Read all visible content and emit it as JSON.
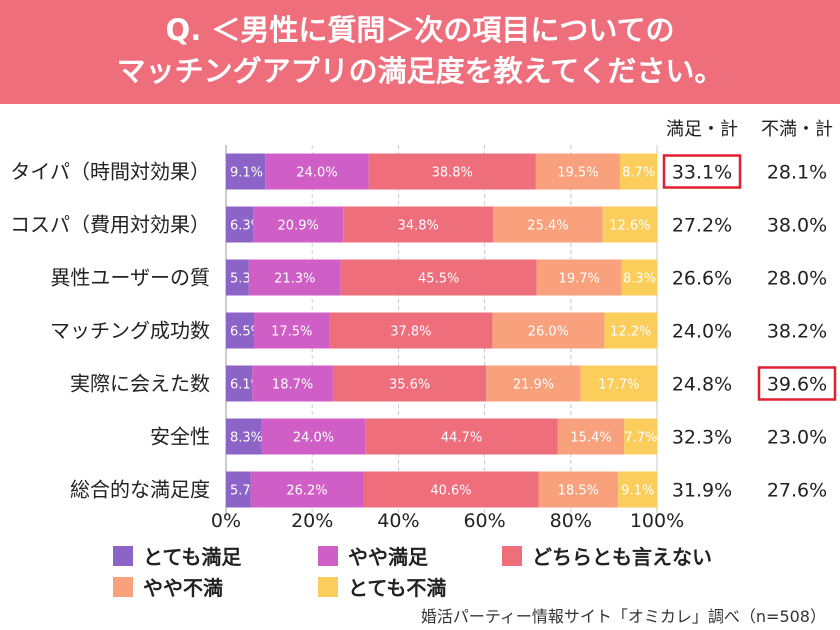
{
  "header": {
    "line1": "Q. ＜男性に質問＞次の項目についての",
    "line2": "マッチングアプリの満足度を教えてください。"
  },
  "chart_data": {
    "type": "bar",
    "orientation": "horizontal-stacked-100",
    "categories": [
      "タイパ（時間対効果）",
      "コスパ（費用対効果）",
      "異性ユーザーの質",
      "マッチング成功数",
      "実際に会えた数",
      "安全性",
      "総合的な満足度"
    ],
    "series": [
      {
        "name": "とても満足",
        "color": "#8c63c6",
        "values": [
          9.1,
          6.3,
          5.3,
          6.5,
          6.1,
          8.3,
          5.7
        ]
      },
      {
        "name": "やや満足",
        "color": "#cf5fc6",
        "values": [
          24.0,
          20.9,
          21.3,
          17.5,
          18.7,
          24.0,
          26.2
        ]
      },
      {
        "name": "どちらとも言えない",
        "color": "#ee6e7c",
        "values": [
          38.8,
          34.8,
          45.5,
          37.8,
          35.6,
          44.7,
          40.6
        ]
      },
      {
        "name": "やや不満",
        "color": "#f9a07c",
        "values": [
          19.5,
          25.4,
          19.7,
          26.0,
          21.9,
          15.4,
          18.5
        ]
      },
      {
        "name": "とても不満",
        "color": "#fbcd5a",
        "values": [
          8.7,
          12.6,
          8.3,
          12.2,
          17.7,
          7.7,
          9.1
        ]
      }
    ],
    "xticks": [
      "0%",
      "20%",
      "40%",
      "60%",
      "80%",
      "100%"
    ],
    "xlim": [
      0,
      100
    ],
    "summary_headers": [
      "満足・計",
      "不満・計"
    ],
    "satisfied_total": [
      "33.1%",
      "27.2%",
      "26.6%",
      "24.0%",
      "24.8%",
      "32.3%",
      "31.9%"
    ],
    "dissatisfied_total": [
      "28.1%",
      "38.0%",
      "28.0%",
      "38.2%",
      "39.6%",
      "23.0%",
      "27.6%"
    ],
    "highlighted": [
      {
        "column": "satisfied",
        "row": 0
      },
      {
        "column": "dissatisfied",
        "row": 4
      }
    ],
    "highlight_color": "#e02030"
  },
  "legend": [
    {
      "label": "とても満足",
      "color": "#8c63c6"
    },
    {
      "label": "やや満足",
      "color": "#cf5fc6"
    },
    {
      "label": "どちらとも言えない",
      "color": "#ee6e7c"
    },
    {
      "label": "やや不満",
      "color": "#f9a07c"
    },
    {
      "label": "とても不満",
      "color": "#fbcd5a"
    }
  ],
  "source": "婚活パーティー情報サイト「オミカレ」調べ（n=508）"
}
